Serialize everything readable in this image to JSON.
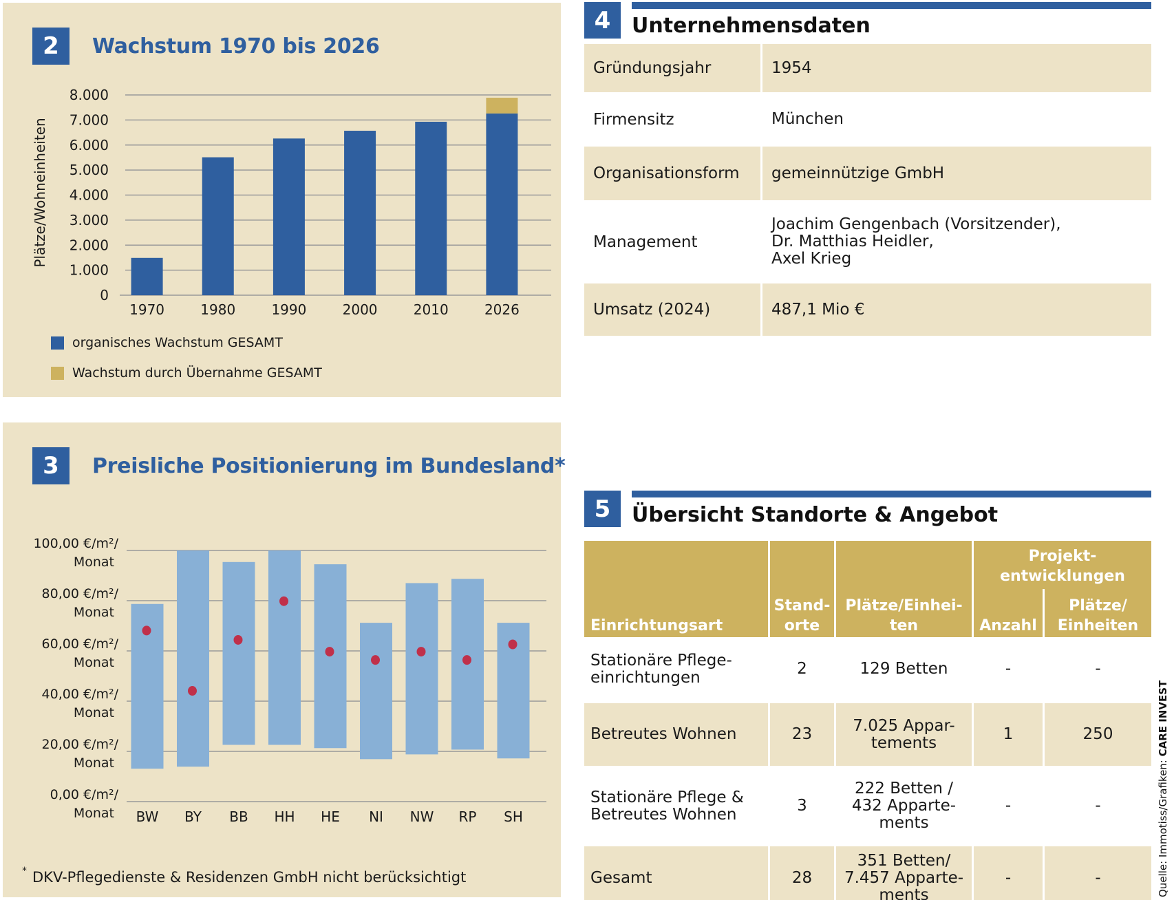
{
  "panel2": {
    "number": "2",
    "title": "Wachstum 1970 bis 2026",
    "legend": [
      {
        "label": "organisches Wachstum GESAMT",
        "color": "#2f5f9f"
      },
      {
        "label": "Wachstum durch Übernahme GESAMT",
        "color": "#cdb25f"
      }
    ]
  },
  "panel3": {
    "number": "3",
    "title": "Preisliche Positionierung im Bundesland",
    "title_marker": "*",
    "footnote_marker": "*",
    "footnote": "DKV-Pflegedienste & Residenzen GmbH nicht berücksichtigt"
  },
  "chart_data": [
    {
      "type": "bar",
      "stacked": true,
      "title": "Wachstum 1970 bis 2026",
      "xlabel": "",
      "ylabel": "Plätze/Wohneinheiten",
      "categories": [
        "1970",
        "1980",
        "1990",
        "2000",
        "2010",
        "2026"
      ],
      "series": [
        {
          "name": "organisches Wachstum GESAMT",
          "color": "#2f5f9f",
          "values": [
            1490,
            5510,
            6260,
            6570,
            6930,
            7260
          ]
        },
        {
          "name": "Wachstum durch Übernahme GESAMT",
          "color": "#cdb25f",
          "values": [
            0,
            0,
            0,
            0,
            0,
            630
          ]
        }
      ],
      "ylim": [
        0,
        8000
      ],
      "yticks": [
        0,
        1000,
        2000,
        3000,
        4000,
        5000,
        6000,
        7000,
        8000
      ],
      "ytick_labels": [
        "0",
        "1.000",
        "2.000",
        "3.000",
        "4.000",
        "5.000",
        "6.000",
        "7.000",
        "8.000"
      ],
      "grid": true,
      "legend": "bottom-left"
    },
    {
      "type": "bar",
      "subtype": "range-with-marker",
      "title": "Preisliche Positionierung im Bundesland*",
      "xlabel": "",
      "ylabel": "€/m²/Monat",
      "categories": [
        "BW",
        "BY",
        "BB",
        "HH",
        "HE",
        "NI",
        "NW",
        "RP",
        "SH"
      ],
      "range_min": [
        13.1,
        13.9,
        22.6,
        22.6,
        21.3,
        16.9,
        18.8,
        20.7,
        17.2
      ],
      "range_max": [
        78.7,
        100.0,
        95.4,
        100.0,
        94.5,
        71.2,
        87.0,
        88.7,
        71.2
      ],
      "marker": [
        68.1,
        44.1,
        64.4,
        79.8,
        59.7,
        56.4,
        59.7,
        56.4,
        62.6
      ],
      "range_color": "#88b0d6",
      "marker_color": "#c0304a",
      "ylim": [
        0,
        100
      ],
      "yticks": [
        0,
        20,
        40,
        60,
        80,
        100
      ],
      "ytick_labels": [
        [
          "0,00 €/m²/",
          "Monat"
        ],
        [
          "20,00 €/m²/",
          "Monat"
        ],
        [
          "40,00 €/m²/",
          "Monat"
        ],
        [
          "60,00 €/m²/",
          "Monat"
        ],
        [
          "80,00 €/m²/",
          "Monat"
        ],
        [
          "100,00 €/m²/",
          "Monat"
        ]
      ],
      "grid": true
    }
  ],
  "section4": {
    "number": "4",
    "title": "Unternehmensdaten",
    "rows": [
      {
        "key": "Gründungsjahr",
        "value": [
          "1954"
        ],
        "shaded": true
      },
      {
        "key": "Firmensitz",
        "value": [
          "München"
        ],
        "shaded": false
      },
      {
        "key": "Organisationsform",
        "value": [
          "gemeinnützige GmbH"
        ],
        "shaded": true
      },
      {
        "key": "Management",
        "value": [
          "Joachim Gengenbach (Vorsitzender),",
          "Dr. Matthias Heidler,",
          "Axel Krieg"
        ],
        "shaded": false
      },
      {
        "key": "Umsatz (2024)",
        "value": [
          "487,1 Mio  €"
        ],
        "shaded": true
      }
    ]
  },
  "section5": {
    "number": "5",
    "title": "Übersicht Standorte & Angebot",
    "headers": {
      "einrichtungsart": "Einrichtungsart",
      "standorte": [
        "Stand-",
        "orte"
      ],
      "plaetze": [
        "Plätze/Einhei-",
        "ten"
      ],
      "projekt_group": [
        "Projekt-",
        "entwicklungen"
      ],
      "anzahl": "Anzahl",
      "projekt_plaetze": [
        "Plätze/",
        "Einheiten"
      ]
    },
    "rows": [
      {
        "art": [
          "Stationäre Pflege-",
          "einrichtungen"
        ],
        "standorte": "2",
        "plaetze": [
          "129 Betten"
        ],
        "anzahl": "-",
        "projekt_plaetze": "-",
        "shaded": false
      },
      {
        "art": [
          "Betreutes Wohnen"
        ],
        "standorte": "23",
        "plaetze": [
          "7.025 Appar-",
          "tements"
        ],
        "anzahl": "1",
        "projekt_plaetze": "250",
        "shaded": true
      },
      {
        "art": [
          "Stationäre Pflege &",
          "Betreutes Wohnen"
        ],
        "standorte": "3",
        "plaetze": [
          "222 Betten /",
          "432 Apparte-",
          "ments"
        ],
        "anzahl": "-",
        "projekt_plaetze": "-",
        "shaded": false
      },
      {
        "art": [
          "Gesamt"
        ],
        "standorte": "28",
        "plaetze": [
          "351 Betten/",
          "7.457 Apparte-",
          "ments"
        ],
        "anzahl": "-",
        "projekt_plaetze": "-",
        "shaded": true
      }
    ]
  },
  "credit": {
    "prefix": "Quelle: Immotiss/Grafiken: ",
    "brand": "CARE INVEST"
  }
}
